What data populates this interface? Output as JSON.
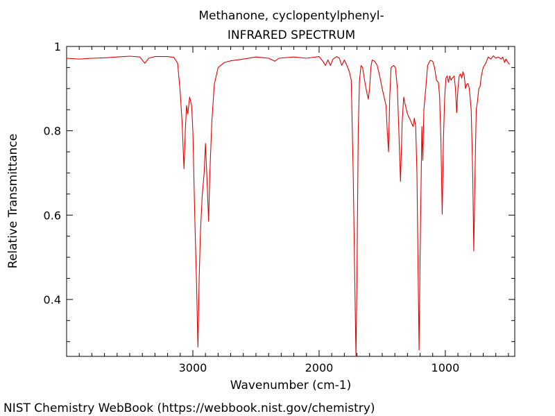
{
  "chart_data": {
    "type": "line",
    "title": "Methanone, cyclopentylphenyl-",
    "subtitle": "INFRARED SPECTRUM",
    "xlabel": "Wavenumber (cm-1)",
    "ylabel": "Relative Transmittance",
    "footer": "NIST Chemistry WebBook (https://webbook.nist.gov/chemistry)",
    "x_reversed": true,
    "xlim": [
      4000,
      450
    ],
    "ylim": [
      0.265,
      1.0
    ],
    "x_ticks": [
      {
        "value": 3000,
        "label": "3000"
      },
      {
        "value": 2000,
        "label": "2000"
      },
      {
        "value": 1000,
        "label": "1000"
      }
    ],
    "y_ticks": [
      {
        "value": 1.0,
        "label": "1"
      },
      {
        "value": 0.8,
        "label": "0.8"
      },
      {
        "value": 0.6,
        "label": "0.6"
      },
      {
        "value": 0.4,
        "label": "0.4"
      }
    ],
    "grid": false,
    "line_color": "#e00000",
    "series": [
      {
        "points": [
          [
            4000,
            0.972
          ],
          [
            3900,
            0.97
          ],
          [
            3800,
            0.972
          ],
          [
            3700,
            0.973
          ],
          [
            3600,
            0.975
          ],
          [
            3500,
            0.977
          ],
          [
            3420,
            0.975
          ],
          [
            3380,
            0.96
          ],
          [
            3350,
            0.972
          ],
          [
            3300,
            0.976
          ],
          [
            3200,
            0.976
          ],
          [
            3150,
            0.974
          ],
          [
            3120,
            0.96
          ],
          [
            3100,
            0.89
          ],
          [
            3085,
            0.82
          ],
          [
            3070,
            0.71
          ],
          [
            3060,
            0.8
          ],
          [
            3050,
            0.86
          ],
          [
            3040,
            0.84
          ],
          [
            3025,
            0.88
          ],
          [
            3010,
            0.86
          ],
          [
            3000,
            0.8
          ],
          [
            2985,
            0.6
          ],
          [
            2970,
            0.43
          ],
          [
            2960,
            0.287
          ],
          [
            2950,
            0.45
          ],
          [
            2940,
            0.56
          ],
          [
            2925,
            0.65
          ],
          [
            2910,
            0.7
          ],
          [
            2900,
            0.77
          ],
          [
            2890,
            0.7
          ],
          [
            2875,
            0.585
          ],
          [
            2865,
            0.7
          ],
          [
            2850,
            0.82
          ],
          [
            2830,
            0.91
          ],
          [
            2800,
            0.95
          ],
          [
            2750,
            0.962
          ],
          [
            2700,
            0.966
          ],
          [
            2600,
            0.97
          ],
          [
            2500,
            0.975
          ],
          [
            2400,
            0.972
          ],
          [
            2350,
            0.965
          ],
          [
            2320,
            0.972
          ],
          [
            2200,
            0.975
          ],
          [
            2100,
            0.972
          ],
          [
            2000,
            0.976
          ],
          [
            1970,
            0.965
          ],
          [
            1950,
            0.955
          ],
          [
            1930,
            0.968
          ],
          [
            1910,
            0.955
          ],
          [
            1890,
            0.97
          ],
          [
            1860,
            0.976
          ],
          [
            1840,
            0.972
          ],
          [
            1820,
            0.955
          ],
          [
            1800,
            0.968
          ],
          [
            1780,
            0.955
          ],
          [
            1760,
            0.94
          ],
          [
            1745,
            0.92
          ],
          [
            1730,
            0.7
          ],
          [
            1715,
            0.4
          ],
          [
            1708,
            0.265
          ],
          [
            1700,
            0.45
          ],
          [
            1690,
            0.8
          ],
          [
            1680,
            0.92
          ],
          [
            1668,
            0.955
          ],
          [
            1655,
            0.95
          ],
          [
            1640,
            0.92
          ],
          [
            1625,
            0.895
          ],
          [
            1610,
            0.875
          ],
          [
            1600,
            0.9
          ],
          [
            1590,
            0.95
          ],
          [
            1580,
            0.968
          ],
          [
            1560,
            0.965
          ],
          [
            1540,
            0.955
          ],
          [
            1520,
            0.93
          ],
          [
            1500,
            0.9
          ],
          [
            1470,
            0.86
          ],
          [
            1460,
            0.8
          ],
          [
            1450,
            0.75
          ],
          [
            1440,
            0.88
          ],
          [
            1430,
            0.95
          ],
          [
            1410,
            0.955
          ],
          [
            1395,
            0.95
          ],
          [
            1380,
            0.9
          ],
          [
            1368,
            0.8
          ],
          [
            1355,
            0.68
          ],
          [
            1342,
            0.82
          ],
          [
            1330,
            0.88
          ],
          [
            1320,
            0.865
          ],
          [
            1300,
            0.84
          ],
          [
            1285,
            0.83
          ],
          [
            1270,
            0.82
          ],
          [
            1255,
            0.81
          ],
          [
            1245,
            0.83
          ],
          [
            1235,
            0.81
          ],
          [
            1225,
            0.7
          ],
          [
            1215,
            0.45
          ],
          [
            1208,
            0.28
          ],
          [
            1200,
            0.5
          ],
          [
            1193,
            0.65
          ],
          [
            1186,
            0.81
          ],
          [
            1178,
            0.73
          ],
          [
            1170,
            0.85
          ],
          [
            1155,
            0.9
          ],
          [
            1140,
            0.955
          ],
          [
            1120,
            0.967
          ],
          [
            1100,
            0.965
          ],
          [
            1085,
            0.95
          ],
          [
            1070,
            0.92
          ],
          [
            1055,
            0.915
          ],
          [
            1045,
            0.88
          ],
          [
            1035,
            0.78
          ],
          [
            1025,
            0.602
          ],
          [
            1015,
            0.78
          ],
          [
            1005,
            0.88
          ],
          [
            995,
            0.925
          ],
          [
            985,
            0.93
          ],
          [
            975,
            0.915
          ],
          [
            965,
            0.93
          ],
          [
            955,
            0.92
          ],
          [
            945,
            0.925
          ],
          [
            930,
            0.93
          ],
          [
            920,
            0.9
          ],
          [
            910,
            0.843
          ],
          [
            900,
            0.9
          ],
          [
            890,
            0.93
          ],
          [
            880,
            0.935
          ],
          [
            870,
            0.925
          ],
          [
            860,
            0.94
          ],
          [
            850,
            0.93
          ],
          [
            840,
            0.9
          ],
          [
            830,
            0.91
          ],
          [
            820,
            0.912
          ],
          [
            810,
            0.9
          ],
          [
            795,
            0.85
          ],
          [
            783,
            0.7
          ],
          [
            775,
            0.515
          ],
          [
            765,
            0.7
          ],
          [
            755,
            0.85
          ],
          [
            745,
            0.87
          ],
          [
            735,
            0.9
          ],
          [
            725,
            0.905
          ],
          [
            715,
            0.93
          ],
          [
            700,
            0.95
          ],
          [
            680,
            0.96
          ],
          [
            660,
            0.975
          ],
          [
            640,
            0.97
          ],
          [
            620,
            0.978
          ],
          [
            600,
            0.972
          ],
          [
            580,
            0.975
          ],
          [
            560,
            0.97
          ],
          [
            545,
            0.975
          ],
          [
            530,
            0.962
          ],
          [
            520,
            0.97
          ],
          [
            500,
            0.96
          ],
          [
            490,
            0.958
          ]
        ]
      }
    ]
  }
}
